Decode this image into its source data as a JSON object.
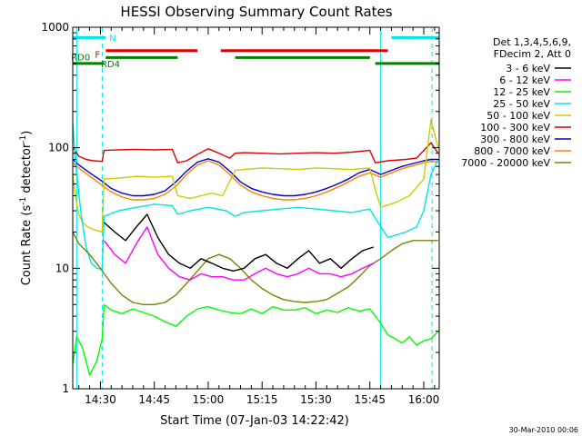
{
  "chart_data": {
    "type": "line",
    "title": "HESSI Observing Summary Count Rates",
    "xlabel": "Start Time (07-Jan-03 14:22:42)",
    "ylabel_main": "Count Rate (s",
    "ylabel_sup1": "-1",
    "ylabel_mid": " detector",
    "ylabel_sup2": "-1",
    "ylabel_end": ")",
    "y_scale": "log",
    "ylim": [
      1,
      1000
    ],
    "xlim_minutes": [
      -7.7,
      94.3
    ],
    "x_ticks": [
      {
        "label": "14:30",
        "min": 0
      },
      {
        "label": "14:45",
        "min": 15
      },
      {
        "label": "15:00",
        "min": 30
      },
      {
        "label": "15:15",
        "min": 45
      },
      {
        "label": "15:30",
        "min": 60
      },
      {
        "label": "15:45",
        "min": 75
      },
      {
        "label": "16:00",
        "min": 90
      }
    ],
    "y_ticks": [
      {
        "label": "1",
        "value": 1
      },
      {
        "label": "10",
        "value": 10
      },
      {
        "label": "100",
        "value": 100
      },
      {
        "label": "1000",
        "value": 1000
      }
    ],
    "grid": false,
    "legend_position": "right",
    "legend_header": [
      "Det 1,3,4,5,6,9,",
      "FDecim 2, Att 0"
    ],
    "footer_date": "30-Mar-2010 00:06",
    "flags": [
      {
        "label": "N",
        "color": "#00e5e5",
        "segments": [
          [
            -7.7,
            1.5
          ],
          [
            81,
            94.3
          ]
        ],
        "level": 820
      },
      {
        "label": "F",
        "color": "#e00000",
        "segments": [
          [
            1.5,
            27
          ],
          [
            33.5,
            80
          ]
        ],
        "level": 640
      },
      {
        "label": "RD0",
        "color": "#008000",
        "segments": [
          [
            1.5,
            21.5
          ],
          [
            37.5,
            75
          ]
        ],
        "level": 560
      },
      {
        "label": "RD4",
        "color": "#008000",
        "segments": [
          [
            -7.7,
            1
          ],
          [
            76.5,
            94.3
          ]
        ],
        "level": 500
      }
    ],
    "vlines": [
      {
        "min": -6.6,
        "style": "solid",
        "color": "#00e5e5"
      },
      {
        "min": 0.5,
        "style": "dashed",
        "color": "#00e5e5"
      },
      {
        "min": 78,
        "style": "solid",
        "color": "#00e5e5"
      },
      {
        "min": 92.3,
        "style": "dashed",
        "color": "#00e5e5"
      }
    ],
    "series": [
      {
        "name": "3 - 6 keV",
        "color": "#000000",
        "x": [
          1,
          4,
          7,
          10,
          13,
          16,
          19,
          22,
          25,
          28,
          31,
          34,
          37,
          40,
          43,
          46,
          49,
          52,
          55,
          58,
          61,
          64,
          67,
          70,
          73,
          76
        ],
        "y": [
          24,
          20,
          17,
          22,
          28,
          18,
          13,
          11,
          10,
          12,
          11,
          10,
          9.5,
          10,
          12,
          13,
          11,
          10,
          12,
          14,
          11,
          12,
          10,
          12,
          14,
          15
        ]
      },
      {
        "name": "6 - 12 keV",
        "color": "#ff00ff",
        "x": [
          1,
          4,
          7,
          10,
          13,
          16,
          19,
          22,
          25,
          28,
          31,
          34,
          37,
          40,
          43,
          46,
          49,
          52,
          55,
          58,
          61,
          64,
          67,
          70,
          73,
          76
        ],
        "y": [
          17,
          13,
          11,
          16,
          22,
          13,
          10,
          8.5,
          8,
          9,
          8.5,
          8.5,
          8,
          8,
          9,
          10,
          9,
          8.5,
          9,
          10,
          9,
          9,
          8.5,
          9,
          10,
          11
        ]
      },
      {
        "name": "12 - 25 keV",
        "color": "#00ff00",
        "x": [
          -7.7,
          -6.6,
          -5,
          -3,
          -1,
          0.5,
          1,
          3,
          6,
          9,
          12,
          15,
          18,
          21,
          24,
          27,
          30,
          33,
          36,
          39,
          42,
          45,
          48,
          51,
          54,
          57,
          60,
          63,
          66,
          69,
          72,
          75,
          78,
          80,
          82,
          84,
          86,
          88,
          90,
          92,
          94
        ],
        "y": [
          1.6,
          2.7,
          2.2,
          1.3,
          1.7,
          2.6,
          5,
          4.5,
          4.2,
          4.6,
          4.3,
          4,
          3.6,
          3.3,
          4,
          4.6,
          4.8,
          4.5,
          4.3,
          4.2,
          4.6,
          4.2,
          4.8,
          4.5,
          4.5,
          4.7,
          4.2,
          4.5,
          4.3,
          4.7,
          4.4,
          4.6,
          3.5,
          2.8,
          2.6,
          2.4,
          2.7,
          2.3,
          2.5,
          2.6,
          3
        ]
      },
      {
        "name": "25 - 50 keV",
        "color": "#00e5e5",
        "x": [
          -7.7,
          -7,
          -5.5,
          -4,
          -2.5,
          -1,
          0.5,
          1,
          5,
          10,
          15,
          20,
          21.5,
          25,
          30,
          35,
          37.5,
          40,
          45,
          50,
          55,
          60,
          65,
          70,
          75,
          76.5,
          80,
          85,
          88,
          90,
          92,
          94
        ],
        "y": [
          160,
          80,
          30,
          15,
          11,
          10,
          9.8,
          27,
          30,
          32,
          34,
          33,
          28,
          30,
          32,
          30,
          27,
          29,
          30,
          31,
          32,
          31,
          30,
          29,
          31,
          26,
          18,
          20,
          22,
          30,
          60,
          80
        ]
      },
      {
        "name": "50 - 100 keV",
        "color": "#cccc00",
        "x": [
          -7.7,
          -7,
          -6,
          -5,
          -3.5,
          -2,
          0.5,
          1,
          5,
          10,
          15,
          20,
          21.5,
          25,
          28,
          31,
          34,
          37.5,
          40,
          45,
          50,
          55,
          60,
          65,
          70,
          75,
          76.5,
          78,
          82,
          86,
          90,
          92,
          94
        ],
        "y": [
          60,
          40,
          28,
          24,
          22,
          21,
          20,
          55,
          56,
          58,
          57,
          58,
          40,
          38,
          40,
          42,
          40,
          65,
          66,
          68,
          67,
          66,
          68,
          67,
          66,
          68,
          45,
          32,
          35,
          40,
          55,
          170,
          100
        ]
      },
      {
        "name": "100 - 300 keV",
        "color": "#e00000",
        "x": [
          -7.7,
          -6,
          -4,
          -2,
          0.5,
          1,
          5,
          10,
          15,
          20,
          21.5,
          24,
          27,
          30,
          33,
          36,
          37.5,
          40,
          45,
          50,
          55,
          60,
          65,
          70,
          75,
          76.5,
          80,
          85,
          88,
          90,
          92,
          94
        ],
        "y": [
          100,
          85,
          80,
          78,
          77,
          95,
          96,
          97,
          96,
          97,
          75,
          78,
          88,
          98,
          90,
          82,
          90,
          91,
          90,
          89,
          90,
          91,
          90,
          92,
          95,
          75,
          78,
          80,
          82,
          95,
          110,
          90
        ]
      },
      {
        "name": "300 - 800 keV",
        "color": "#0000cc",
        "x": [
          -7.7,
          -6,
          -3,
          0,
          3,
          6,
          9,
          12,
          15,
          18,
          21,
          24,
          27,
          30,
          33,
          36,
          39,
          42,
          45,
          48,
          51,
          54,
          57,
          60,
          63,
          66,
          69,
          72,
          75,
          78,
          81,
          84,
          87,
          90,
          92,
          94
        ],
        "y": [
          80,
          72,
          62,
          54,
          46,
          42,
          40,
          40,
          41,
          44,
          52,
          64,
          76,
          81,
          76,
          64,
          52,
          46,
          43,
          41,
          40,
          40,
          41,
          43,
          46,
          50,
          55,
          62,
          66,
          60,
          65,
          70,
          74,
          78,
          80,
          80
        ]
      },
      {
        "name": "800 - 7000 keV",
        "color": "#ff8000",
        "x": [
          -7.7,
          -6,
          -3,
          0,
          3,
          6,
          9,
          12,
          15,
          18,
          21,
          24,
          27,
          30,
          33,
          36,
          39,
          42,
          45,
          48,
          51,
          54,
          57,
          60,
          63,
          66,
          69,
          72,
          75,
          78,
          81,
          84,
          87,
          90,
          92,
          94
        ],
        "y": [
          75,
          68,
          58,
          50,
          43,
          39,
          37,
          37,
          38,
          41,
          48,
          60,
          72,
          78,
          72,
          60,
          49,
          43,
          40,
          38,
          37,
          37,
          38,
          40,
          43,
          47,
          52,
          58,
          62,
          57,
          62,
          67,
          71,
          75,
          77,
          76
        ]
      },
      {
        "name": "7000 - 20000 keV",
        "color": "#808000",
        "x": [
          -7.7,
          -6,
          -3,
          0,
          3,
          6,
          9,
          12,
          15,
          18,
          21,
          24,
          27,
          30,
          33,
          36,
          39,
          42,
          45,
          48,
          51,
          54,
          57,
          60,
          63,
          66,
          69,
          72,
          75,
          78,
          81,
          84,
          87,
          90,
          92,
          94
        ],
        "y": [
          20,
          16,
          13,
          10,
          7.5,
          6,
          5.2,
          5,
          5,
          5.2,
          6,
          7.5,
          9.5,
          12,
          13,
          12,
          10,
          8,
          6.8,
          6,
          5.5,
          5.3,
          5.2,
          5.3,
          5.5,
          6.2,
          7,
          8.5,
          10.5,
          12,
          14,
          16,
          17,
          17,
          17,
          17
        ]
      }
    ]
  }
}
